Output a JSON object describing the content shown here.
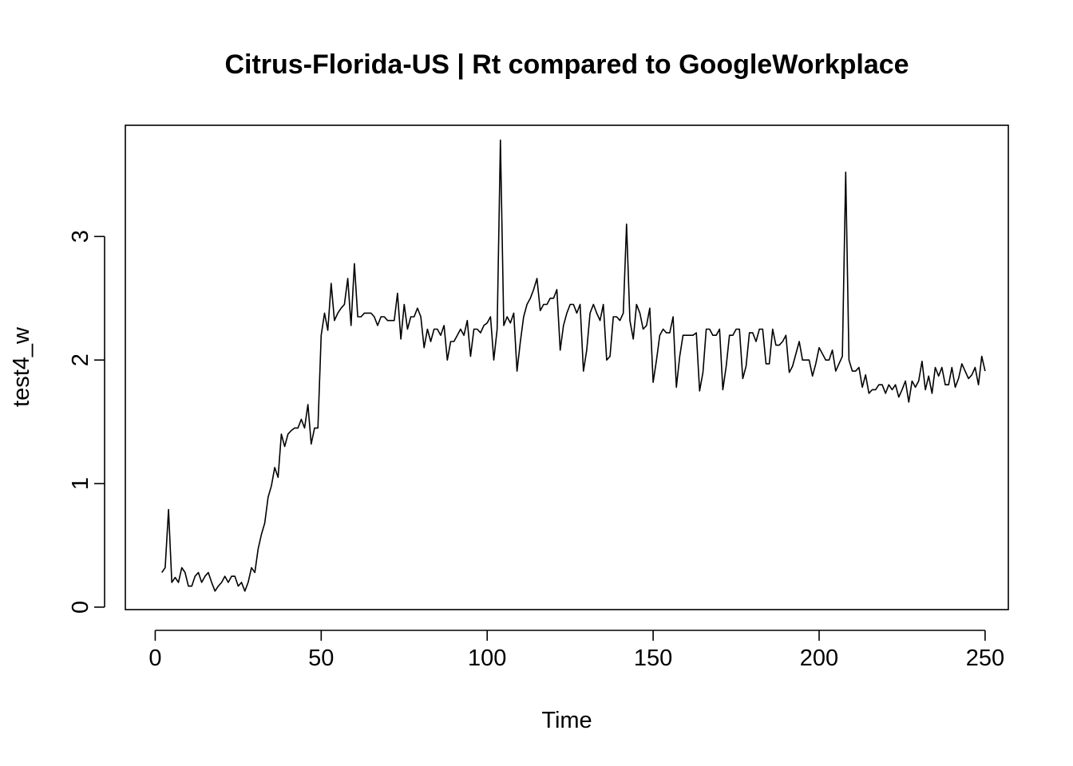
{
  "chart_data": {
    "type": "line",
    "title": "Citrus-Florida-US | Rt compared to GoogleWorkplace",
    "xlabel": "Time",
    "ylabel": "test4_w",
    "xlim": [
      -9,
      257
    ],
    "ylim": [
      -0.02,
      3.9
    ],
    "x_ticks": [
      0,
      50,
      100,
      150,
      200,
      250
    ],
    "y_ticks": [
      0,
      1,
      2,
      3
    ],
    "grid": false,
    "legend": "none",
    "line_color": "#000000",
    "series": [
      {
        "x_start": 2,
        "values": [
          0.28,
          0.32,
          0.79,
          0.2,
          0.24,
          0.2,
          0.32,
          0.28,
          0.17,
          0.17,
          0.25,
          0.28,
          0.2,
          0.25,
          0.28,
          0.2,
          0.13,
          0.17,
          0.2,
          0.25,
          0.2,
          0.25,
          0.25,
          0.17,
          0.2,
          0.13,
          0.2,
          0.32,
          0.28,
          0.47,
          0.59,
          0.68,
          0.89,
          0.98,
          1.13,
          1.05,
          1.4,
          1.3,
          1.4,
          1.43,
          1.45,
          1.45,
          1.52,
          1.45,
          1.64,
          1.32,
          1.45,
          1.45,
          2.2,
          2.38,
          2.24,
          2.62,
          2.32,
          2.38,
          2.42,
          2.45,
          2.66,
          2.28,
          2.78,
          2.35,
          2.35,
          2.38,
          2.38,
          2.38,
          2.35,
          2.28,
          2.35,
          2.35,
          2.32,
          2.32,
          2.32,
          2.54,
          2.17,
          2.45,
          2.25,
          2.35,
          2.35,
          2.42,
          2.35,
          2.1,
          2.25,
          2.15,
          2.25,
          2.25,
          2.2,
          2.28,
          2.0,
          2.15,
          2.15,
          2.2,
          2.25,
          2.2,
          2.32,
          2.03,
          2.25,
          2.25,
          2.22,
          2.28,
          2.3,
          2.35,
          2.0,
          2.25,
          3.78,
          2.28,
          2.35,
          2.3,
          2.38,
          1.91,
          2.15,
          2.35,
          2.45,
          2.5,
          2.57,
          2.66,
          2.4,
          2.45,
          2.45,
          2.5,
          2.5,
          2.57,
          2.08,
          2.28,
          2.38,
          2.45,
          2.45,
          2.38,
          2.45,
          1.91,
          2.08,
          2.38,
          2.45,
          2.38,
          2.32,
          2.45,
          2.0,
          2.03,
          2.35,
          2.35,
          2.32,
          2.38,
          3.1,
          2.32,
          2.17,
          2.45,
          2.38,
          2.25,
          2.28,
          2.42,
          1.82,
          2.0,
          2.2,
          2.25,
          2.22,
          2.22,
          2.35,
          1.78,
          2.03,
          2.2,
          2.2,
          2.2,
          2.2,
          2.22,
          1.75,
          1.9,
          2.25,
          2.25,
          2.2,
          2.2,
          2.25,
          1.76,
          1.95,
          2.2,
          2.2,
          2.25,
          2.25,
          1.85,
          1.95,
          2.22,
          2.22,
          2.15,
          2.25,
          2.25,
          1.97,
          1.97,
          2.25,
          2.12,
          2.12,
          2.15,
          2.2,
          1.9,
          1.95,
          2.05,
          2.15,
          2.0,
          2.0,
          2.0,
          1.87,
          1.97,
          2.1,
          2.05,
          2.0,
          2.0,
          2.08,
          1.91,
          1.97,
          2.03,
          3.52,
          2.0,
          1.91,
          1.91,
          1.94,
          1.78,
          1.88,
          1.73,
          1.76,
          1.76,
          1.8,
          1.8,
          1.73,
          1.8,
          1.76,
          1.8,
          1.7,
          1.76,
          1.83,
          1.66,
          1.83,
          1.78,
          1.83,
          1.99,
          1.76,
          1.87,
          1.73,
          1.94,
          1.87,
          1.94,
          1.8,
          1.8,
          1.94,
          1.78,
          1.85,
          1.97,
          1.91,
          1.85,
          1.88,
          1.94,
          1.8,
          2.03,
          1.91
        ]
      }
    ]
  }
}
